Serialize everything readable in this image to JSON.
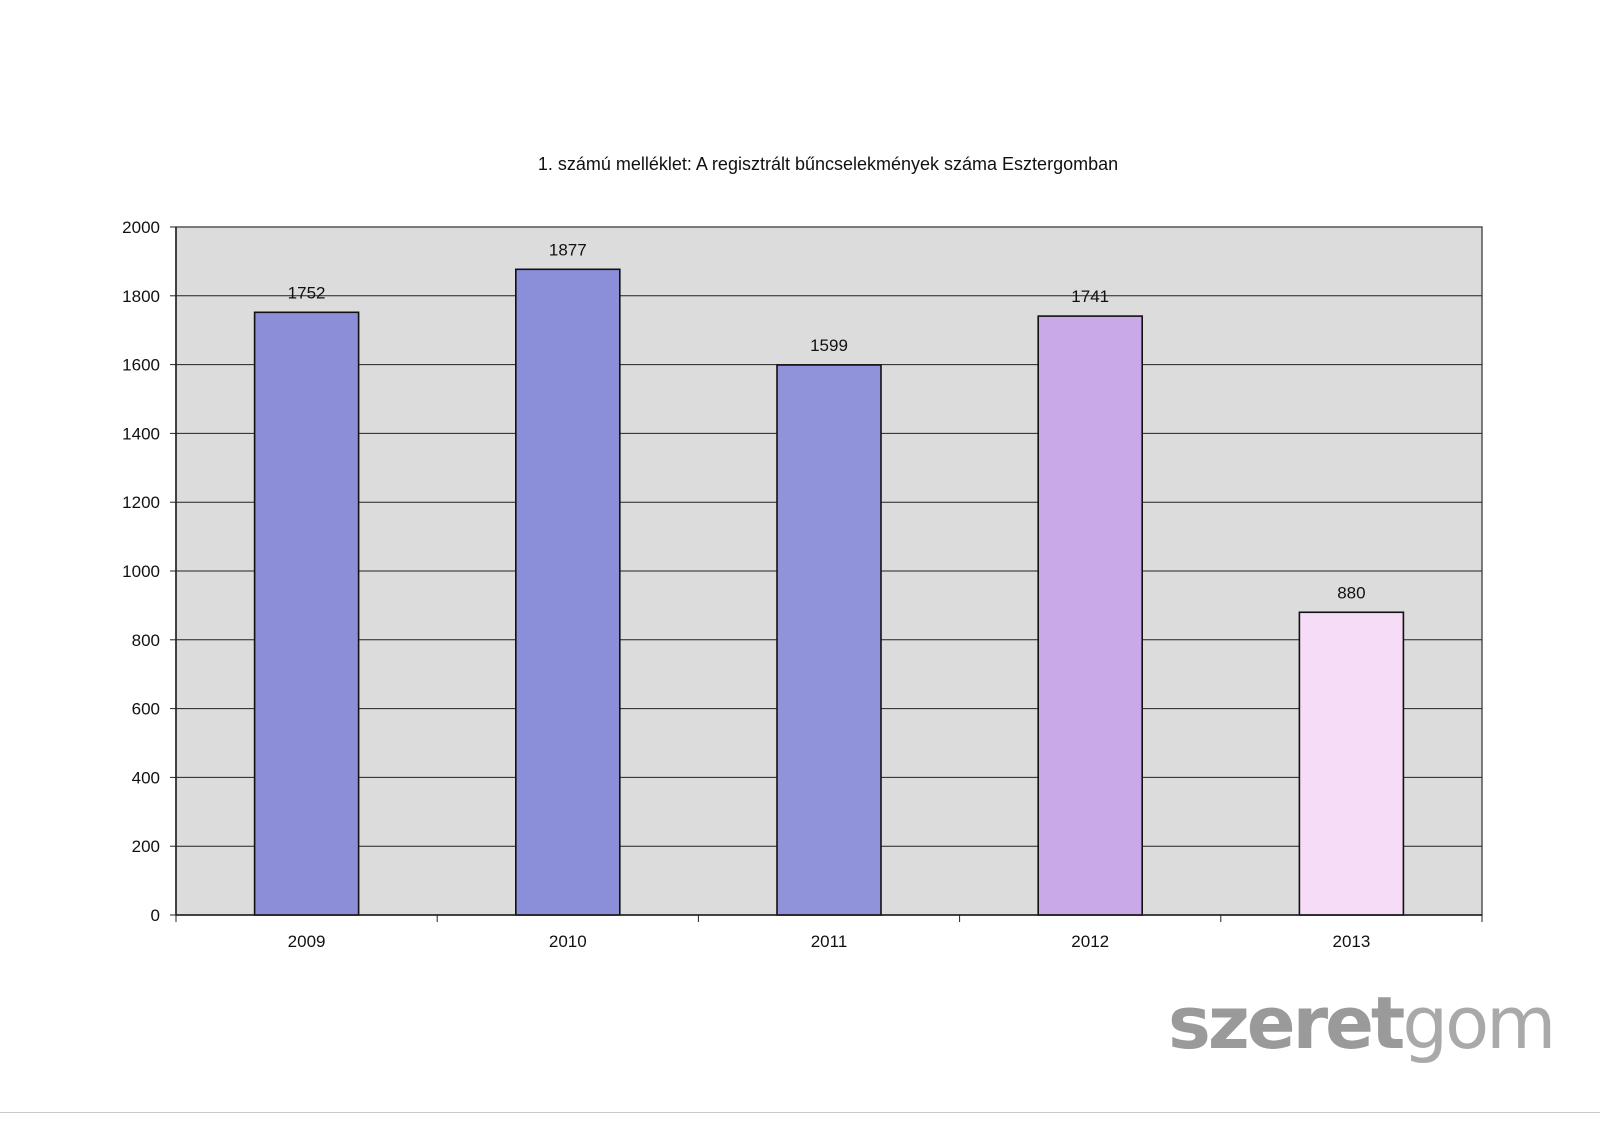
{
  "chart_data": {
    "type": "bar",
    "title": "1. számú melléklet: A regisztrált bűncselekmények száma Esztergomban",
    "categories": [
      "2009",
      "2010",
      "2011",
      "2012",
      "2013"
    ],
    "values": [
      1752,
      1877,
      1599,
      1741,
      880
    ],
    "data_labels": [
      "1752",
      "1877",
      "1599",
      "1741",
      "880"
    ],
    "bar_colors": [
      "#8c8fd8",
      "#8b8ed9",
      "#9093d9",
      "#c9a9e8",
      "#f6dcf6"
    ],
    "plot_background": "#dcdcdc",
    "ylim": [
      0,
      2000
    ],
    "yticks": [
      0,
      200,
      400,
      600,
      800,
      1000,
      1200,
      1400,
      1600,
      1800,
      2000
    ],
    "ytick_labels": [
      "0",
      "200",
      "400",
      "600",
      "800",
      "1000",
      "1200",
      "1400",
      "1600",
      "1800",
      "2000"
    ],
    "grid": true,
    "legend": "none",
    "xlabel": "",
    "ylabel": ""
  },
  "watermark": {
    "bold_part": "szeret",
    "light_part": "gom"
  }
}
